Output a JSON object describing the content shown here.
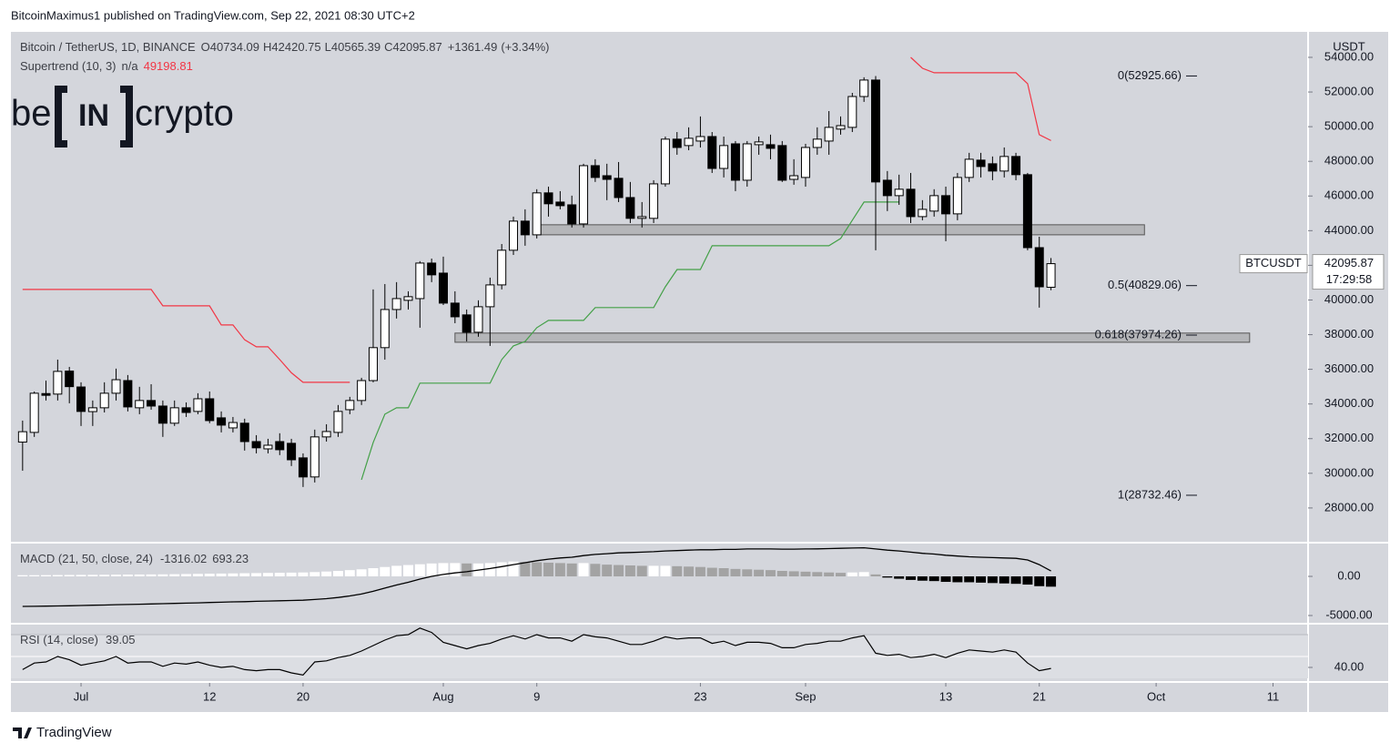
{
  "header": {
    "publisher": "BitcoinMaximus1 published on TradingView.com, Sep 22, 2021 08:30 UTC+2"
  },
  "logo": {
    "left": "be",
    "middle": "IN",
    "right": "crypto"
  },
  "footer": {
    "brand": "TradingView"
  },
  "chart_data": [
    {
      "type": "candlestick",
      "title": "Bitcoin / TetherUS, 1D, BINANCE",
      "ohlc_letters": [
        "O",
        "H",
        "L",
        "C"
      ],
      "change": {
        "value": 1361.49,
        "label": "+1361.49"
      },
      "change_pct": {
        "value": 3.34,
        "label": "(+3.34%)"
      },
      "x": [
        "Jun 26",
        "Jun 27",
        "Jun 28",
        "Jun 29",
        "Jun 30",
        "Jul 1",
        "Jul 2",
        "Jul 3",
        "Jul 4",
        "Jul 5",
        "Jul 6",
        "Jul 7",
        "Jul 8",
        "Jul 9",
        "Jul 10",
        "Jul 11",
        "Jul 12",
        "Jul 13",
        "Jul 14",
        "Jul 15",
        "Jul 16",
        "Jul 17",
        "Jul 18",
        "Jul 19",
        "Jul 20",
        "Jul 21",
        "Jul 22",
        "Jul 23",
        "Jul 24",
        "Jul 25",
        "Jul 26",
        "Jul 27",
        "Jul 28",
        "Jul 29",
        "Jul 30",
        "Jul 31",
        "Aug 1",
        "Aug 2",
        "Aug 3",
        "Aug 4",
        "Aug 5",
        "Aug 6",
        "Aug 7",
        "Aug 8",
        "Aug 9",
        "Aug 10",
        "Aug 11",
        "Aug 12",
        "Aug 13",
        "Aug 14",
        "Aug 15",
        "Aug 16",
        "Aug 17",
        "Aug 18",
        "Aug 19",
        "Aug 20",
        "Aug 21",
        "Aug 22",
        "Aug 23",
        "Aug 24",
        "Aug 25",
        "Aug 26",
        "Aug 27",
        "Aug 28",
        "Aug 29",
        "Aug 30",
        "Aug 31",
        "Sep 1",
        "Sep 2",
        "Sep 3",
        "Sep 4",
        "Sep 5",
        "Sep 6",
        "Sep 7",
        "Sep 8",
        "Sep 9",
        "Sep 10",
        "Sep 11",
        "Sep 12",
        "Sep 13",
        "Sep 14",
        "Sep 15",
        "Sep 16",
        "Sep 17",
        "Sep 18",
        "Sep 19",
        "Sep 20",
        "Sep 21",
        "Sep 22"
      ],
      "open": [
        31800,
        32360,
        34600,
        34570,
        35900,
        34980,
        33560,
        33780,
        34620,
        35350,
        33780,
        34200,
        33880,
        32890,
        33780,
        33570,
        34300,
        33200,
        32620,
        32890,
        31830,
        31410,
        31830,
        31730,
        30890,
        29790,
        32100,
        32360,
        33670,
        34200,
        35350,
        37250,
        39450,
        39980,
        40080,
        42130,
        41550,
        39820,
        39140,
        38140,
        39610,
        40870,
        42870,
        44550,
        43760,
        46180,
        45650,
        45490,
        44390,
        47750,
        47170,
        47020,
        45910,
        44710,
        44710,
        46700,
        49280,
        48910,
        49170,
        49430,
        47590,
        49010,
        46910,
        48960,
        48960,
        48910,
        46960,
        47070,
        48800,
        49170,
        49860,
        49960,
        51740,
        52690,
        46910,
        46020,
        46390,
        44810,
        45130,
        46020,
        44970,
        47070,
        48070,
        47860,
        47440,
        48280,
        47230,
        43020,
        40734.09
      ],
      "high": [
        33040,
        34720,
        35350,
        36560,
        36140,
        35250,
        34200,
        35250,
        36040,
        35670,
        34990,
        35140,
        34200,
        34200,
        34090,
        34620,
        34720,
        33570,
        33250,
        33150,
        32200,
        31990,
        32310,
        31990,
        31150,
        32520,
        32830,
        33940,
        34410,
        35510,
        40610,
        40920,
        41030,
        40500,
        42240,
        42390,
        42500,
        40500,
        39450,
        39980,
        41290,
        43230,
        44810,
        45230,
        46390,
        46540,
        46280,
        46020,
        47860,
        48120,
        47860,
        47960,
        46810,
        45650,
        46910,
        49430,
        49690,
        49960,
        50590,
        49690,
        49430,
        49170,
        49170,
        49430,
        49540,
        49170,
        48120,
        49010,
        49960,
        50900,
        50590,
        51950,
        52850,
        52920,
        47440,
        47230,
        47330,
        45760,
        46390,
        46540,
        47330,
        48490,
        48490,
        48280,
        48800,
        48490,
        47330,
        43650,
        42420.75
      ],
      "low": [
        30150,
        32100,
        34200,
        34200,
        34040,
        32730,
        32730,
        33510,
        34200,
        33570,
        33410,
        33670,
        32100,
        32730,
        33250,
        33410,
        32890,
        32360,
        32360,
        31310,
        31150,
        31150,
        31050,
        30420,
        29210,
        29470,
        31830,
        32100,
        33410,
        33940,
        35250,
        36560,
        38930,
        39450,
        38400,
        41030,
        39710,
        38660,
        37610,
        37880,
        37350,
        40610,
        42600,
        43130,
        43550,
        44810,
        45230,
        44180,
        44180,
        46810,
        45760,
        45650,
        44440,
        44180,
        44440,
        46540,
        48380,
        48640,
        48800,
        47330,
        47070,
        46280,
        46540,
        48380,
        48120,
        46810,
        46650,
        46540,
        48380,
        48380,
        49540,
        49690,
        51430,
        42870,
        45130,
        45490,
        44440,
        44600,
        44810,
        43390,
        44600,
        46810,
        47070,
        46910,
        47070,
        46910,
        42870,
        39560,
        40565.39
      ],
      "close": [
        32400,
        34620,
        34500,
        35880,
        35000,
        33570,
        33780,
        34620,
        35400,
        33830,
        34200,
        33880,
        32890,
        33780,
        33510,
        34300,
        33040,
        32780,
        32930,
        31830,
        31470,
        31620,
        31360,
        30780,
        29790,
        32100,
        32410,
        33570,
        34200,
        35350,
        37250,
        39450,
        40080,
        40190,
        42130,
        41450,
        39820,
        39030,
        38140,
        39610,
        40870,
        42870,
        44550,
        43760,
        46180,
        45550,
        45440,
        44390,
        47750,
        47070,
        46960,
        45910,
        44710,
        44810,
        46700,
        49280,
        48800,
        49330,
        49430,
        47590,
        48910,
        46910,
        49010,
        49120,
        48750,
        46910,
        47170,
        48800,
        49280,
        49960,
        50060,
        51740,
        52690,
        46810,
        46020,
        46390,
        44810,
        45230,
        46020,
        44970,
        47070,
        48120,
        47700,
        47440,
        48280,
        47230,
        43020,
        40760,
        42095.87
      ],
      "up_color": "#ffffff",
      "down_color": "#000000",
      "xlim": [
        "Jun 25",
        "Oct 14"
      ],
      "xticks": [
        {
          "value": "Jul 1",
          "label": "Jul"
        },
        {
          "value": "Jul 12",
          "label": "12"
        },
        {
          "value": "Jul 20",
          "label": "20"
        },
        {
          "value": "Aug 1",
          "label": "Aug"
        },
        {
          "value": "Aug 9",
          "label": "9"
        },
        {
          "value": "Aug 23",
          "label": "23"
        },
        {
          "value": "Sep 1",
          "label": "Sep"
        },
        {
          "value": "Sep 13",
          "label": "13"
        },
        {
          "value": "Sep 21",
          "label": "21"
        },
        {
          "value": "Oct 1",
          "label": "Oct"
        },
        {
          "value": "Oct 11",
          "label": "11"
        }
      ],
      "ylim": [
        26050,
        55470
      ],
      "yticks": [
        {
          "value": 28000,
          "label": "28000.00"
        },
        {
          "value": 30000,
          "label": "30000.00"
        },
        {
          "value": 32000,
          "label": "32000.00"
        },
        {
          "value": 34000,
          "label": "34000.00"
        },
        {
          "value": 36000,
          "label": "36000.00"
        },
        {
          "value": 38000,
          "label": "38000.00"
        },
        {
          "value": 40000,
          "label": "40000.00"
        },
        {
          "value": 42000,
          "label": "42000.00"
        },
        {
          "value": 44000,
          "label": "44000.00"
        },
        {
          "value": 46000,
          "label": "46000.00"
        },
        {
          "value": 48000,
          "label": "48000.00"
        },
        {
          "value": 50000,
          "label": "50000.00"
        },
        {
          "value": 52000,
          "label": "52000.00"
        },
        {
          "value": 54000,
          "label": "54000.00"
        }
      ],
      "axis_unit": "USDT",
      "symbol": "BTCUSDT",
      "countdown": "17:29:58",
      "supertrend": {
        "name": "Supertrend (10, 3)",
        "status": "n/a",
        "up_color": "#43a047",
        "down_color": "#f23645",
        "down_values": [
          40610,
          40610,
          40610,
          40610,
          40610,
          40610,
          40610,
          40610,
          40610,
          40610,
          40610,
          40610,
          39660,
          39660,
          39660,
          39660,
          39660,
          38560,
          38560,
          37700,
          37300,
          37300,
          36560,
          35800,
          35250,
          35250,
          35250,
          35250,
          35250,
          null,
          null,
          null,
          null,
          null,
          null,
          null,
          null,
          null,
          null,
          null,
          null,
          null,
          null,
          null,
          null,
          null,
          null,
          null,
          null,
          null,
          null,
          null,
          null,
          null,
          null,
          null,
          null,
          null,
          null,
          null,
          null,
          null,
          null,
          null,
          null,
          null,
          null,
          null,
          null,
          null,
          null,
          null,
          null,
          null,
          null,
          null,
          54000,
          53370,
          53110,
          53110,
          53110,
          53110,
          53110,
          53110,
          53110,
          53110,
          52480,
          49540,
          49198.81
        ],
        "up_values": [
          null,
          null,
          null,
          null,
          null,
          null,
          null,
          null,
          null,
          null,
          null,
          null,
          null,
          null,
          null,
          null,
          null,
          null,
          null,
          null,
          null,
          null,
          null,
          null,
          null,
          null,
          null,
          null,
          null,
          29630,
          31780,
          33410,
          33780,
          33780,
          35200,
          35200,
          35200,
          35200,
          35200,
          35200,
          35200,
          36560,
          37350,
          37610,
          38400,
          38820,
          38820,
          38820,
          38820,
          39560,
          39560,
          39560,
          39560,
          39560,
          39560,
          40760,
          41760,
          41760,
          41760,
          43130,
          43130,
          43130,
          43130,
          43130,
          43130,
          43130,
          43130,
          43130,
          43130,
          43130,
          43550,
          44600,
          45650,
          45650,
          45650,
          45650,
          null,
          null,
          null,
          null,
          null,
          null,
          null,
          null,
          null,
          null,
          null,
          null,
          null
        ]
      },
      "fib_levels": [
        {
          "value": 52925.66,
          "label": "0(52925.66)"
        },
        {
          "value": 40829.06,
          "label": "0.5(40829.06)"
        },
        {
          "value": 37974.26,
          "label": "0.618(37974.26)"
        },
        {
          "value": 28732.46,
          "label": "1(28732.46)"
        }
      ],
      "zones": [
        {
          "low": 43760,
          "high": 44340,
          "start": "Aug 9",
          "end": "Sep 30"
        },
        {
          "low": 37560,
          "high": 38090,
          "start": "Aug 2",
          "end": "Oct 9"
        }
      ]
    },
    {
      "type": "macd",
      "name": "MACD (21, 50, close, 24)",
      "line_color": "#000000",
      "hist_colors": {
        "pos_rising": "#ffffff",
        "pos_falling": "#a3a3a3",
        "neg_falling": "#000000",
        "neg_rising": "#555555"
      },
      "macd": [
        -3840,
        -3820,
        -3800,
        -3780,
        -3760,
        -3720,
        -3690,
        -3660,
        -3620,
        -3590,
        -3560,
        -3520,
        -3490,
        -3450,
        -3420,
        -3380,
        -3340,
        -3300,
        -3260,
        -3230,
        -3190,
        -3150,
        -3110,
        -3080,
        -3050,
        -2950,
        -2850,
        -2700,
        -2500,
        -2250,
        -1900,
        -1500,
        -1100,
        -750,
        -350,
        0,
        250,
        450,
        600,
        800,
        1000,
        1250,
        1500,
        1750,
        2000,
        2200,
        2350,
        2450,
        2650,
        2800,
        2900,
        3000,
        3050,
        3100,
        3150,
        3250,
        3300,
        3350,
        3400,
        3400,
        3450,
        3450,
        3500,
        3500,
        3500,
        3480,
        3480,
        3500,
        3520,
        3550,
        3580,
        3620,
        3650,
        3500,
        3350,
        3250,
        3100,
        2950,
        2850,
        2700,
        2600,
        2500,
        2450,
        2400,
        2350,
        2300,
        2100,
        1500,
        693.23
      ],
      "histogram": [
        150,
        150,
        160,
        170,
        180,
        190,
        200,
        210,
        220,
        230,
        240,
        250,
        260,
        280,
        300,
        320,
        340,
        360,
        380,
        400,
        420,
        440,
        460,
        480,
        500,
        550,
        620,
        700,
        800,
        900,
        1050,
        1200,
        1350,
        1450,
        1550,
        1650,
        1700,
        1700,
        1650,
        1650,
        1700,
        1800,
        1900,
        1850,
        1800,
        1750,
        1700,
        1650,
        1700,
        1600,
        1500,
        1450,
        1400,
        1350,
        1350,
        1350,
        1300,
        1250,
        1200,
        1100,
        1050,
        950,
        900,
        850,
        800,
        700,
        650,
        600,
        550,
        500,
        450,
        500,
        550,
        250,
        -150,
        -300,
        -450,
        -550,
        -600,
        -700,
        -750,
        -750,
        -800,
        -850,
        -900,
        -950,
        -1050,
        -1250,
        -1316.02
      ],
      "ylim": [
        -5930,
        4190
      ],
      "yticks": [
        {
          "value": 0,
          "label": "0.00"
        },
        {
          "value": -5000,
          "label": "-5000.00"
        }
      ]
    },
    {
      "type": "rsi",
      "name": "RSI (14, close)",
      "line_color": "#000000",
      "bands": {
        "upper": 70,
        "middle": 50,
        "lower": 30
      },
      "values": [
        38,
        44,
        45,
        50,
        47,
        42,
        44,
        46,
        50,
        44,
        45,
        45,
        41,
        44,
        43,
        45,
        42,
        40,
        41,
        38,
        37,
        38,
        38,
        35,
        33,
        45,
        46,
        49,
        51,
        55,
        60,
        65,
        69,
        70,
        76,
        72,
        63,
        60,
        57,
        60,
        62,
        66,
        69,
        66,
        70,
        67,
        67,
        64,
        70,
        68,
        67,
        64,
        61,
        61,
        64,
        68,
        66,
        67,
        67,
        62,
        64,
        60,
        63,
        63,
        62,
        58,
        58,
        61,
        62,
        64,
        64,
        67,
        69,
        53,
        51,
        52,
        49,
        50,
        52,
        49,
        53,
        56,
        55,
        54,
        56,
        54,
        44,
        37,
        39.05
      ],
      "ylim": [
        27.5,
        79.2
      ],
      "yticks": [
        {
          "value": 40,
          "label": "40.00"
        }
      ]
    }
  ]
}
